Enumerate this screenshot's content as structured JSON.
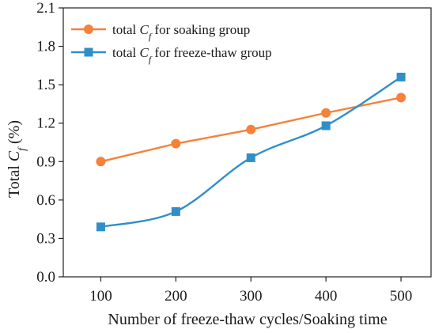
{
  "chart_data": {
    "type": "line",
    "x": [
      100,
      200,
      300,
      400,
      500
    ],
    "xlim": [
      50,
      540
    ],
    "ylim": [
      0.0,
      2.1
    ],
    "x_ticks": [
      "100",
      "200",
      "300",
      "400",
      "500"
    ],
    "y_ticks": [
      "0.0",
      "0.3",
      "0.6",
      "0.9",
      "1.2",
      "1.5",
      "1.8",
      "2.1"
    ],
    "xlabel": "Number of freeze-thaw cycles/Soaking time",
    "ylabel": {
      "prefix": "Total ",
      "var": "C",
      "sub": "f",
      "suffix": " (%)"
    },
    "grid": false,
    "legend_position": "top-left",
    "series": [
      {
        "name": "total Cf for soaking group",
        "legend": {
          "prefix": "total ",
          "var": "C",
          "sub": "f",
          "suffix": " for soaking group"
        },
        "values": [
          0.9,
          1.04,
          1.15,
          1.28,
          1.4
        ],
        "color": "#f5813a",
        "marker": "circle",
        "smooth": false
      },
      {
        "name": "total Cf for freeze-thaw group",
        "legend": {
          "prefix": "total ",
          "var": "C",
          "sub": "f",
          "suffix": " for freeze-thaw group"
        },
        "values": [
          0.39,
          0.51,
          0.93,
          1.18,
          1.56
        ],
        "color": "#2f8fc9",
        "marker": "square",
        "smooth": true
      }
    ]
  }
}
